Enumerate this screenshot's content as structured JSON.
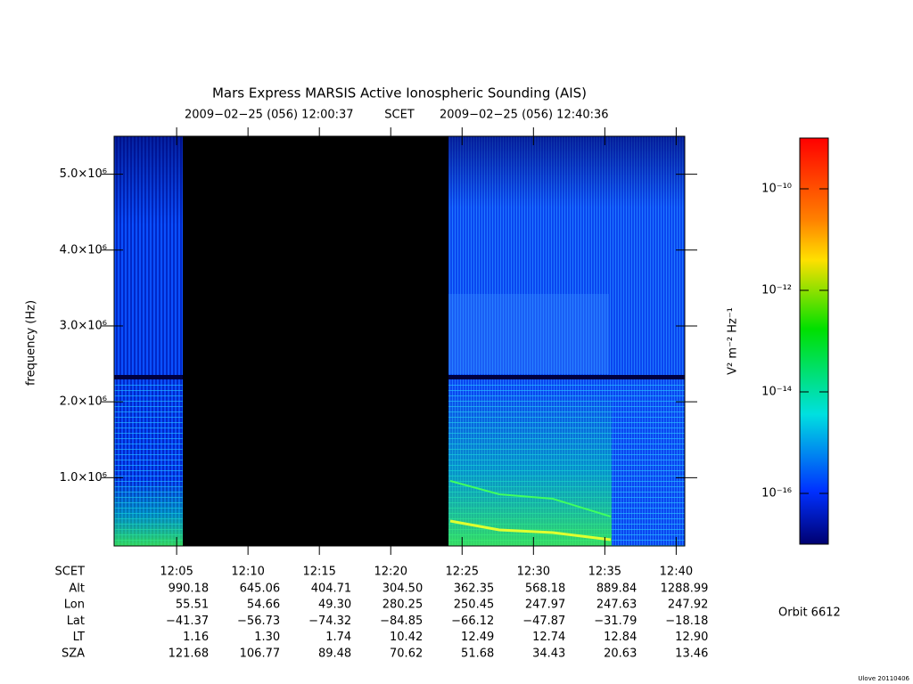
{
  "chart_data": {
    "type": "spectrogram",
    "title": "Mars Express MARSIS Active Ionospheric Sounding (AIS)",
    "subtitle_start": "2009−02−25 (056) 12:00:37",
    "subtitle_frame": "SCET",
    "subtitle_end": "2009−02−25 (056) 12:40:36",
    "ylabel": "frequency (Hz)",
    "ylim": [
      100000,
      5500000
    ],
    "yticks": [
      {
        "value": 1000000,
        "label": "1.0×10⁶"
      },
      {
        "value": 2000000,
        "label": "2.0×10⁶"
      },
      {
        "value": 3000000,
        "label": "3.0×10⁶"
      },
      {
        "value": 4000000,
        "label": "4.0×10⁶"
      },
      {
        "value": 5000000,
        "label": "5.0×10⁶"
      }
    ],
    "xlim": [
      0.62,
      40.6
    ],
    "xticks": [
      {
        "value": 5,
        "label": "12:05"
      },
      {
        "value": 10,
        "label": "12:10"
      },
      {
        "value": 15,
        "label": "12:15"
      },
      {
        "value": 20,
        "label": "12:20"
      },
      {
        "value": 25,
        "label": "12:25"
      },
      {
        "value": 30,
        "label": "12:30"
      },
      {
        "value": 35,
        "label": "12:35"
      },
      {
        "value": 40,
        "label": "12:40"
      }
    ],
    "colorbar": {
      "label": "V² m⁻² Hz⁻¹",
      "scale": "log",
      "lim": [
        1e-17,
        1e-09
      ],
      "ticks": [
        {
          "value": 1e-16,
          "label": "10⁻¹⁶"
        },
        {
          "value": 1e-14,
          "label": "10⁻¹⁴"
        },
        {
          "value": 1e-12,
          "label": "10⁻¹²"
        },
        {
          "value": 1e-10,
          "label": "10⁻¹⁰"
        }
      ]
    }
  },
  "ephemeris": {
    "header": "SCET",
    "rows": [
      {
        "label": "Alt",
        "values": [
          "990.18",
          "645.06",
          "404.71",
          "304.50",
          "362.35",
          "568.18",
          "889.84",
          "1288.99"
        ]
      },
      {
        "label": "Lon",
        "values": [
          "55.51",
          "54.66",
          "49.30",
          "280.25",
          "250.45",
          "247.97",
          "247.63",
          "247.92"
        ]
      },
      {
        "label": "Lat",
        "values": [
          "−41.37",
          "−56.73",
          "−74.32",
          "−84.85",
          "−66.12",
          "−47.87",
          "−31.79",
          "−18.18"
        ]
      },
      {
        "label": "LT",
        "values": [
          "1.16",
          "1.30",
          "1.74",
          "10.42",
          "12.49",
          "12.74",
          "12.84",
          "12.90"
        ]
      },
      {
        "label": "SZA",
        "values": [
          "121.68",
          "106.77",
          "89.48",
          "70.62",
          "51.68",
          "34.43",
          "20.63",
          "13.46"
        ]
      }
    ]
  },
  "orbit": "Orbit 6612",
  "footer": "Ulove 20110406"
}
